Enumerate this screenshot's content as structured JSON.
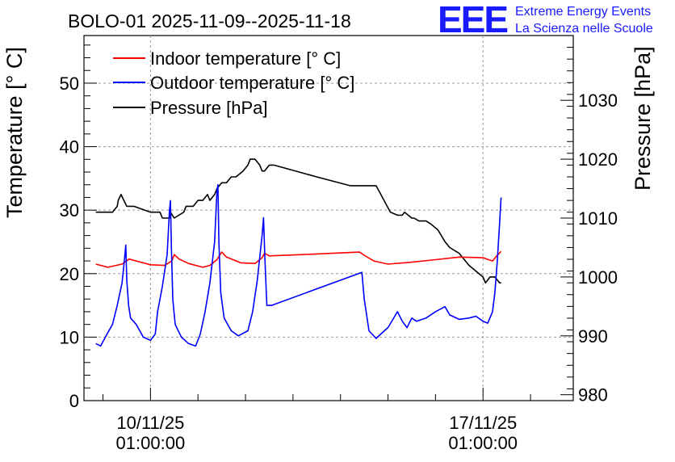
{
  "logo": {
    "mark": "EEE",
    "line1": "Extreme Energy Events",
    "line2": "La Scienza nelle Scuole"
  },
  "chart_data": {
    "type": "line",
    "title": "BOLO-01 2025-11-09--2025-11-18",
    "ylabel": "Temperature [° C]",
    "y2label": "Pressure [hPa]",
    "ylim": [
      0,
      57.5
    ],
    "y2lim": [
      979,
      1041
    ],
    "xlim": [
      -1.4,
      8.9
    ],
    "x_ticks": [
      {
        "value": 0,
        "date": "10/11/25",
        "time": "01:00:00"
      },
      {
        "value": 7,
        "date": "17/11/25",
        "time": "01:00:00"
      }
    ],
    "y_ticks": [
      0,
      10,
      20,
      30,
      40,
      50
    ],
    "y2_ticks": [
      980,
      990,
      1000,
      1010,
      1020,
      1030
    ],
    "x_unit": "days since 10/11/25 01:00:00",
    "legend": [
      {
        "label": "Indoor temperature [° C]",
        "color": "#ff0000"
      },
      {
        "label": "Outdoor temperature [° C]",
        "color": "#0000ff"
      },
      {
        "label": "Pressure [hPa]",
        "color": "#000000"
      }
    ],
    "series": [
      {
        "name": "Indoor temperature [° C]",
        "axis": "left",
        "color": "#ff0000",
        "x": [
          -1.15,
          -0.9,
          -0.6,
          -0.45,
          -0.3,
          0,
          0.3,
          0.45,
          0.5,
          0.6,
          0.8,
          1.1,
          1.25,
          1.4,
          1.5,
          1.6,
          1.9,
          2.2,
          2.35,
          2.4,
          2.5,
          3.2,
          4.4,
          4.5,
          4.7,
          5.0,
          5.5,
          6.0,
          6.5,
          7.0,
          7.2,
          7.3,
          7.38
        ],
        "y": [
          21.5,
          21.0,
          21.5,
          22.3,
          22.0,
          21.4,
          21.3,
          22.0,
          23.0,
          22.3,
          21.6,
          21.0,
          21.3,
          22.2,
          23.4,
          22.6,
          21.7,
          21.6,
          22.5,
          23.2,
          22.8,
          23.0,
          23.4,
          22.9,
          22.0,
          21.5,
          21.8,
          22.2,
          22.6,
          22.5,
          22.0,
          22.9,
          23.5
        ]
      },
      {
        "name": "Outdoor temperature [° C]",
        "axis": "left",
        "color": "#0000ff",
        "x": [
          -1.15,
          -1.05,
          -0.95,
          -0.8,
          -0.7,
          -0.6,
          -0.55,
          -0.52,
          -0.5,
          -0.46,
          -0.42,
          -0.3,
          -0.15,
          0,
          0.1,
          0.15,
          0.25,
          0.35,
          0.4,
          0.42,
          0.44,
          0.47,
          0.52,
          0.65,
          0.8,
          0.95,
          1.05,
          1.15,
          1.25,
          1.35,
          1.4,
          1.42,
          1.44,
          1.48,
          1.55,
          1.7,
          1.85,
          2.05,
          2.15,
          2.25,
          2.35,
          2.38,
          2.41,
          2.45,
          2.55,
          4.45,
          4.5,
          4.6,
          4.75,
          4.85,
          5.0,
          5.2,
          5.3,
          5.4,
          5.5,
          5.6,
          5.8,
          6.0,
          6.2,
          6.3,
          6.5,
          6.7,
          6.85,
          7.0,
          7.1,
          7.2,
          7.25,
          7.3,
          7.35,
          7.38
        ],
        "y": [
          9.0,
          8.6,
          10.0,
          12.0,
          15.0,
          18.5,
          22.0,
          24.5,
          19.0,
          15.0,
          13.0,
          12.0,
          10.0,
          9.5,
          10.5,
          14.0,
          18.0,
          23.0,
          30.0,
          31.5,
          24.0,
          16.0,
          12.0,
          10.0,
          9.0,
          8.6,
          10.5,
          14.0,
          18.5,
          25.0,
          33.0,
          34.0,
          25.0,
          17.0,
          13.0,
          11.0,
          10.2,
          11.0,
          14.0,
          19.0,
          26.0,
          28.8,
          22.0,
          15.0,
          15.0,
          20.2,
          16.0,
          11.0,
          9.8,
          10.5,
          11.5,
          14.0,
          12.5,
          11.5,
          13.0,
          12.5,
          13.0,
          14.0,
          14.8,
          13.5,
          12.8,
          13.0,
          13.3,
          12.5,
          12.2,
          14.0,
          17.0,
          22.0,
          28.0,
          32.0
        ]
      },
      {
        "name": "Pressure [hPa]",
        "axis": "right",
        "color": "#000000",
        "x": [
          -1.15,
          -0.8,
          -0.7,
          -0.68,
          -0.62,
          -0.56,
          -0.5,
          -0.44,
          -0.35,
          0,
          0.2,
          0.25,
          0.4,
          0.42,
          0.5,
          0.7,
          0.75,
          0.8,
          0.9,
          1.0,
          1.1,
          1.2,
          1.25,
          1.35,
          1.4,
          1.5,
          1.6,
          1.7,
          1.8,
          1.95,
          2.05,
          2.1,
          2.2,
          2.3,
          2.35,
          2.4,
          2.5,
          2.6,
          3.5,
          4.2,
          4.75,
          4.85,
          4.95,
          5.05,
          5.2,
          5.3,
          5.35,
          5.5,
          5.55,
          5.65,
          5.8,
          5.9,
          6.05,
          6.2,
          6.3,
          6.5,
          6.6,
          6.7,
          6.85,
          7.0,
          7.05,
          7.15,
          7.25,
          7.35,
          7.38
        ],
        "y": [
          1011,
          1011,
          1012,
          1013,
          1014,
          1013,
          1012,
          1012,
          1012,
          1011,
          1011,
          1010,
          1010,
          1011,
          1010,
          1011,
          1012,
          1012,
          1012,
          1013,
          1013,
          1014,
          1013,
          1014,
          1015,
          1016,
          1016,
          1017,
          1017,
          1018,
          1019,
          1020,
          1020,
          1019,
          1018,
          1018,
          1019,
          1019,
          1017,
          1015.5,
          1015.5,
          1014,
          1012.5,
          1011,
          1010.5,
          1010.5,
          1011,
          1010,
          1010,
          1009.5,
          1009.5,
          1009,
          1008,
          1006,
          1005,
          1004,
          1003,
          1002,
          1001,
          1000,
          999,
          1000,
          1000,
          999,
          999
        ]
      }
    ]
  }
}
